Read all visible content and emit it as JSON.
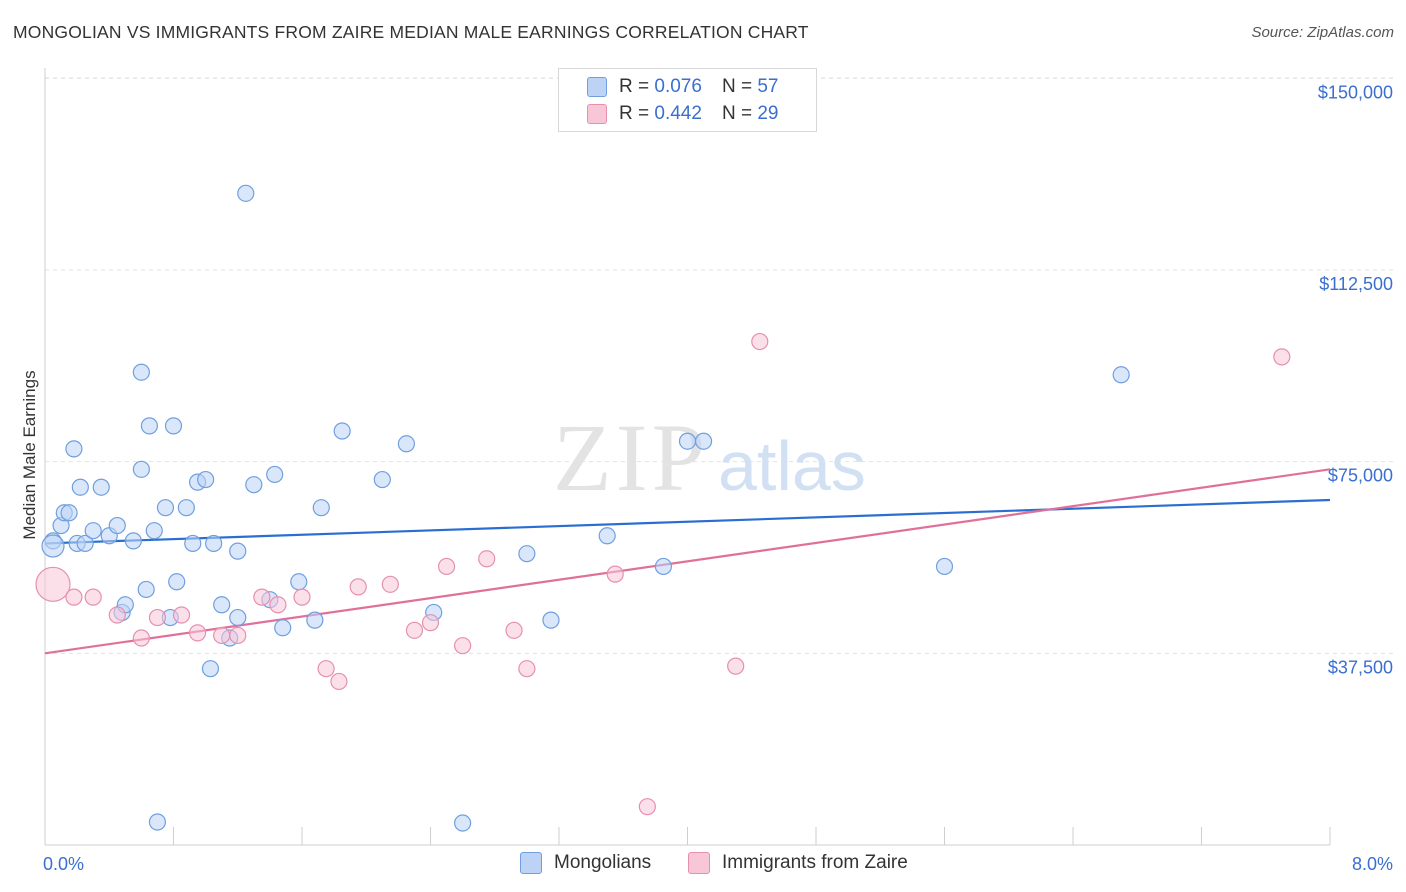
{
  "title": "MONGOLIAN VS IMMIGRANTS FROM ZAIRE MEDIAN MALE EARNINGS CORRELATION CHART",
  "source": "Source: ZipAtlas.com",
  "watermark": {
    "zip": "ZIP",
    "atlas": "atlas"
  },
  "legend": {
    "rows": [
      {
        "r_label": "R =",
        "r_value": "0.076",
        "n_label": "N =",
        "n_value": "57"
      },
      {
        "r_label": "R =",
        "r_value": "0.442",
        "n_label": "N =",
        "n_value": "29"
      }
    ]
  },
  "bottom_legend": {
    "series1": "Mongolians",
    "series2": "Immigrants from Zaire"
  },
  "chart_data": {
    "type": "scatter",
    "title": "MONGOLIAN VS IMMIGRANTS FROM ZAIRE MEDIAN MALE EARNINGS CORRELATION CHART",
    "xlabel": "",
    "ylabel": "Median Male Earnings",
    "xlim": [
      0,
      8
    ],
    "ylim": [
      0,
      153000
    ],
    "x_tick_labels": [
      "0.0%",
      "8.0%"
    ],
    "y_ticks": [
      37500,
      75000,
      112500,
      150000
    ],
    "y_tick_labels": [
      "$37,500",
      "$75,000",
      "$112,500",
      "$150,000"
    ],
    "grid": true,
    "colors": {
      "series1": "#6f9fe0",
      "series1_fill": "#bcd3f5",
      "series2": "#e78fb0",
      "series2_fill": "#f7c7d8",
      "trend1": "#2a6fcf",
      "trend2": "#e0709a",
      "tick_text": "#3a6fcf"
    },
    "series": [
      {
        "name": "Mongolians",
        "points": [
          [
            0.05,
            59500
          ],
          [
            0.1,
            62500
          ],
          [
            0.12,
            65000
          ],
          [
            0.15,
            65000
          ],
          [
            0.18,
            77500
          ],
          [
            0.2,
            59000
          ],
          [
            0.22,
            70000
          ],
          [
            0.25,
            59000
          ],
          [
            0.3,
            61500
          ],
          [
            0.35,
            70000
          ],
          [
            0.4,
            60500
          ],
          [
            0.45,
            62500
          ],
          [
            0.48,
            45500
          ],
          [
            0.5,
            47000
          ],
          [
            0.55,
            59500
          ],
          [
            0.6,
            73500
          ],
          [
            0.6,
            92500
          ],
          [
            0.63,
            50000
          ],
          [
            0.65,
            82000
          ],
          [
            0.68,
            61500
          ],
          [
            0.7,
            4500
          ],
          [
            0.75,
            66000
          ],
          [
            0.78,
            44500
          ],
          [
            0.8,
            82000
          ],
          [
            0.82,
            51500
          ],
          [
            0.88,
            66000
          ],
          [
            0.92,
            59000
          ],
          [
            0.95,
            71000
          ],
          [
            1.0,
            71500
          ],
          [
            1.03,
            34500
          ],
          [
            1.05,
            59000
          ],
          [
            1.1,
            47000
          ],
          [
            1.15,
            40500
          ],
          [
            1.2,
            44500
          ],
          [
            1.2,
            57500
          ],
          [
            1.3,
            70500
          ],
          [
            1.25,
            127500
          ],
          [
            1.43,
            72500
          ],
          [
            1.4,
            48000
          ],
          [
            1.48,
            42500
          ],
          [
            1.58,
            51500
          ],
          [
            1.68,
            44000
          ],
          [
            1.72,
            66000
          ],
          [
            1.85,
            81000
          ],
          [
            2.1,
            71500
          ],
          [
            2.25,
            78500
          ],
          [
            2.42,
            45500
          ],
          [
            2.6,
            4300
          ],
          [
            3.0,
            57000
          ],
          [
            3.15,
            44000
          ],
          [
            3.5,
            60500
          ],
          [
            4.0,
            79000
          ],
          [
            4.1,
            79000
          ],
          [
            3.85,
            54500
          ],
          [
            5.6,
            54500
          ],
          [
            6.7,
            92000
          ],
          [
            0.0,
            58500
          ]
        ],
        "trend": [
          [
            0,
            59000
          ],
          [
            8,
            67500
          ]
        ]
      },
      {
        "name": "Immigrants from Zaire",
        "points": [
          [
            0.0,
            51000
          ],
          [
            0.18,
            48500
          ],
          [
            0.3,
            48500
          ],
          [
            0.45,
            45000
          ],
          [
            0.6,
            40500
          ],
          [
            0.7,
            44500
          ],
          [
            0.85,
            45000
          ],
          [
            0.95,
            41500
          ],
          [
            1.1,
            41000
          ],
          [
            1.2,
            41000
          ],
          [
            1.35,
            48500
          ],
          [
            1.45,
            47000
          ],
          [
            1.6,
            48500
          ],
          [
            1.75,
            34500
          ],
          [
            1.83,
            32000
          ],
          [
            1.95,
            50500
          ],
          [
            2.15,
            51000
          ],
          [
            2.3,
            42000
          ],
          [
            2.4,
            43500
          ],
          [
            2.5,
            54500
          ],
          [
            2.6,
            39000
          ],
          [
            2.75,
            56000
          ],
          [
            2.92,
            42000
          ],
          [
            3.0,
            34500
          ],
          [
            3.55,
            53000
          ],
          [
            3.75,
            7500
          ],
          [
            4.3,
            35000
          ],
          [
            4.45,
            98500
          ],
          [
            7.7,
            95500
          ]
        ],
        "trend": [
          [
            0,
            37500
          ],
          [
            8,
            73500
          ]
        ]
      }
    ]
  }
}
